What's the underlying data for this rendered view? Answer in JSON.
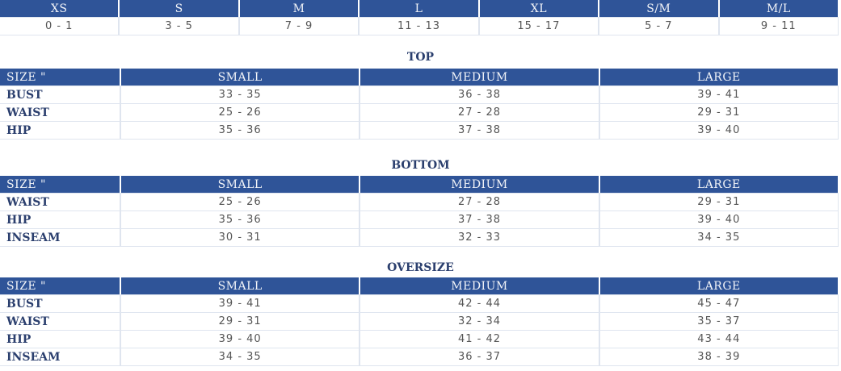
{
  "size_conversion": {
    "headers": [
      "XS",
      "S",
      "M",
      "L",
      "XL",
      "S/M",
      "M/L"
    ],
    "values": [
      "0 - 1",
      "3 - 5",
      "7 - 9",
      "11 - 13",
      "15 - 17",
      "5 - 7",
      "9 - 11"
    ]
  },
  "sections": [
    {
      "title": "TOP",
      "headers": [
        "SIZE \"",
        "SMALL",
        "MEDIUM",
        "LARGE"
      ],
      "rows": [
        [
          "BUST",
          "33 - 35",
          "36 - 38",
          "39 - 41"
        ],
        [
          "WAIST",
          "25 - 26",
          "27 - 28",
          "29 - 31"
        ],
        [
          "HIP",
          "35 - 36",
          "37 - 38",
          "39 - 40"
        ]
      ]
    },
    {
      "title": "BOTTOM",
      "headers": [
        "SIZE \"",
        "SMALL",
        "MEDIUM",
        "LARGE"
      ],
      "rows": [
        [
          "WAIST",
          "25 - 26",
          "27 - 28",
          "29 - 31"
        ],
        [
          "HIP",
          "35 - 36",
          "37 - 38",
          "39 - 40"
        ],
        [
          "INSEAM",
          "30 - 31",
          "32 - 33",
          "34 - 35"
        ]
      ]
    },
    {
      "title": "OVERSIZE",
      "headers": [
        "SIZE \"",
        "SMALL",
        "MEDIUM",
        "LARGE"
      ],
      "rows": [
        [
          "BUST",
          "39 - 41",
          "42 - 44",
          "45 - 47"
        ],
        [
          "WAIST",
          "29 - 31",
          "32 - 34",
          "35 - 37"
        ],
        [
          "HIP",
          "39 - 40",
          "41 - 42",
          "43 - 44"
        ],
        [
          "INSEAM",
          "34 - 35",
          "36 - 37",
          "38 - 39"
        ]
      ]
    }
  ],
  "colors": {
    "header_bg": "#2f5498",
    "label_text": "#2b3f6e",
    "value_text": "#555555"
  }
}
